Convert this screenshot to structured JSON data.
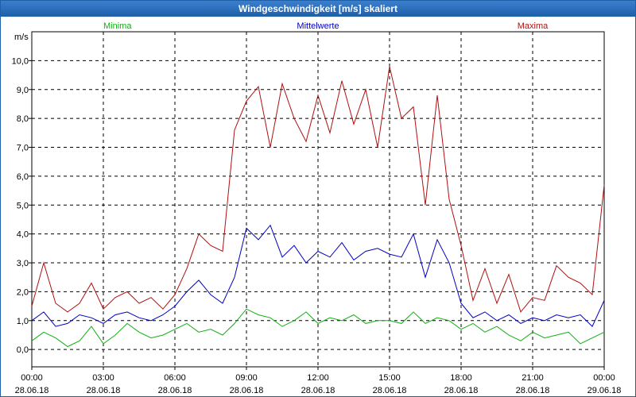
{
  "window": {
    "title": "Windgeschwindigkeit [m/s] skaliert"
  },
  "chart_data": {
    "type": "line",
    "title": "Windgeschwindigkeit [m/s] skaliert",
    "ylabel": "m/s",
    "ylim": [
      -0.6,
      11.0
    ],
    "yticks": [
      "0,0",
      "1,0",
      "2,0",
      "3,0",
      "4,0",
      "5,0",
      "6,0",
      "7,0",
      "8,0",
      "9,0",
      "10,0"
    ],
    "xlim": [
      0,
      24
    ],
    "xticks": [
      {
        "time": "00:00",
        "date": "28.06.18"
      },
      {
        "time": "03:00",
        "date": "28.06.18"
      },
      {
        "time": "06:00",
        "date": "28.06.18"
      },
      {
        "time": "09:00",
        "date": "28.06.18"
      },
      {
        "time": "12:00",
        "date": "28.06.18"
      },
      {
        "time": "15:00",
        "date": "28.06.18"
      },
      {
        "time": "18:00",
        "date": "28.06.18"
      },
      {
        "time": "21:00",
        "date": "28.06.18"
      },
      {
        "time": "00:00",
        "date": "29.06.18"
      }
    ],
    "grid": true,
    "legend_position": "top",
    "series": [
      {
        "name": "Minima",
        "color": "#10b010",
        "x": [
          0,
          0.5,
          1,
          1.5,
          2,
          2.5,
          3,
          3.5,
          4,
          4.5,
          5,
          5.5,
          6,
          6.5,
          7,
          7.5,
          8,
          8.5,
          9,
          9.5,
          10,
          10.5,
          11,
          11.5,
          12,
          12.5,
          13,
          13.5,
          14,
          14.5,
          15,
          15.5,
          16,
          16.5,
          17,
          17.5,
          18,
          18.5,
          19,
          19.5,
          20,
          20.5,
          21,
          21.5,
          22,
          22.5,
          23,
          23.5,
          24
        ],
        "y": [
          0.3,
          0.6,
          0.4,
          0.1,
          0.3,
          0.8,
          0.2,
          0.5,
          0.9,
          0.6,
          0.4,
          0.5,
          0.7,
          0.9,
          0.6,
          0.7,
          0.5,
          0.9,
          1.4,
          1.2,
          1.1,
          0.8,
          1.0,
          1.3,
          0.9,
          1.1,
          1.0,
          1.2,
          0.9,
          1.0,
          1.0,
          0.9,
          1.3,
          0.9,
          1.1,
          1.0,
          0.7,
          0.9,
          0.6,
          0.8,
          0.5,
          0.3,
          0.6,
          0.4,
          0.5,
          0.6,
          0.2,
          0.4,
          0.6
        ]
      },
      {
        "name": "Mittelwerte",
        "color": "#0000c0",
        "x": [
          0,
          0.5,
          1,
          1.5,
          2,
          2.5,
          3,
          3.5,
          4,
          4.5,
          5,
          5.5,
          6,
          6.5,
          7,
          7.5,
          8,
          8.5,
          9,
          9.5,
          10,
          10.5,
          11,
          11.5,
          12,
          12.5,
          13,
          13.5,
          14,
          14.5,
          15,
          15.5,
          16,
          16.5,
          17,
          17.5,
          18,
          18.5,
          19,
          19.5,
          20,
          20.5,
          21,
          21.5,
          22,
          22.5,
          23,
          23.5,
          24
        ],
        "y": [
          1.0,
          1.3,
          0.8,
          0.9,
          1.2,
          1.1,
          0.9,
          1.2,
          1.3,
          1.1,
          1.0,
          1.2,
          1.5,
          2.0,
          2.4,
          1.9,
          1.6,
          2.5,
          4.2,
          3.8,
          4.3,
          3.2,
          3.6,
          3.0,
          3.4,
          3.2,
          3.7,
          3.1,
          3.4,
          3.5,
          3.3,
          3.2,
          4.0,
          2.5,
          3.8,
          3.0,
          1.6,
          1.1,
          1.3,
          1.0,
          1.2,
          0.9,
          1.1,
          1.0,
          1.2,
          1.1,
          1.2,
          0.8,
          1.7
        ]
      },
      {
        "name": "Maxima",
        "color": "#b01010",
        "x": [
          0,
          0.5,
          1,
          1.5,
          2,
          2.5,
          3,
          3.5,
          4,
          4.5,
          5,
          5.5,
          6,
          6.5,
          7,
          7.5,
          8,
          8.5,
          9,
          9.5,
          10,
          10.5,
          11,
          11.5,
          12,
          12.5,
          13,
          13.5,
          14,
          14.5,
          15,
          15.5,
          16,
          16.5,
          17,
          17.5,
          18,
          18.5,
          19,
          19.5,
          20,
          20.5,
          21,
          21.5,
          22,
          22.5,
          23,
          23.5,
          24
        ],
        "y": [
          1.5,
          3.0,
          1.6,
          1.3,
          1.6,
          2.3,
          1.4,
          1.8,
          2.0,
          1.6,
          1.8,
          1.4,
          1.9,
          2.8,
          4.0,
          3.6,
          3.4,
          7.6,
          8.6,
          9.1,
          7.0,
          9.2,
          8.0,
          7.2,
          8.8,
          7.5,
          9.3,
          7.8,
          9.0,
          7.0,
          9.8,
          8.0,
          8.4,
          5.0,
          8.8,
          5.2,
          3.6,
          1.7,
          2.8,
          1.6,
          2.6,
          1.3,
          1.8,
          1.7,
          2.9,
          2.5,
          2.3,
          1.9,
          5.7
        ]
      }
    ]
  }
}
